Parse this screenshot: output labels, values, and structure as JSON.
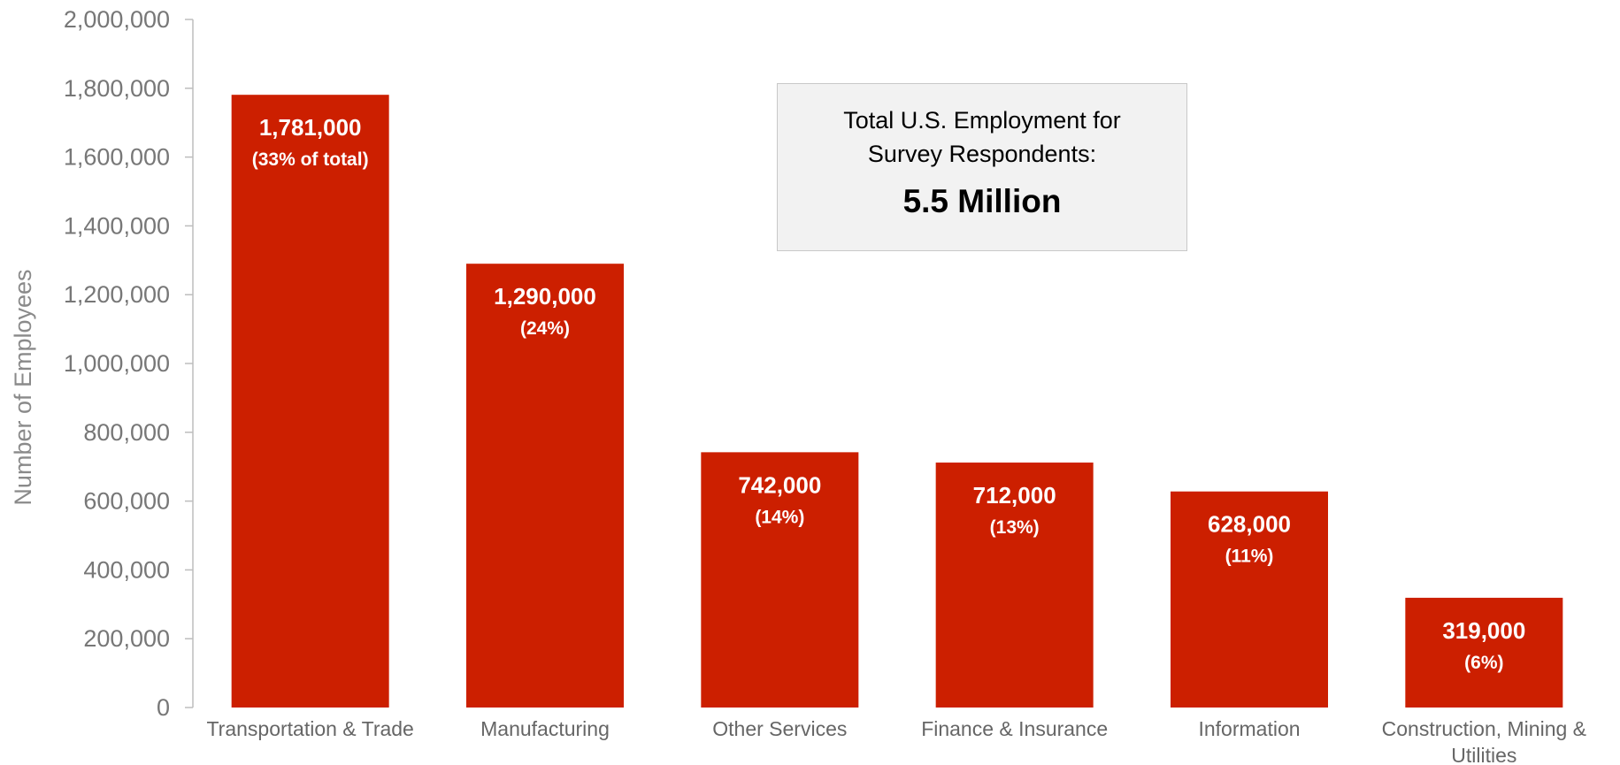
{
  "chart_data": {
    "type": "bar",
    "title": "",
    "xlabel": "",
    "ylabel": "Number of Employees",
    "ylim": [
      0,
      2000000
    ],
    "yticks": [
      "0",
      "200,000",
      "400,000",
      "600,000",
      "800,000",
      "1,000,000",
      "1,200,000",
      "1,400,000",
      "1,600,000",
      "1,800,000",
      "2,000,000"
    ],
    "ytick_values": [
      0,
      200000,
      400000,
      600000,
      800000,
      1000000,
      1200000,
      1400000,
      1600000,
      1800000,
      2000000
    ],
    "grid": false,
    "categories": [
      "Transportation & Trade",
      "Manufacturing",
      "Other Services",
      "Finance & Insurance",
      "Information",
      "Construction, Mining & Utilities"
    ],
    "values": [
      1781000,
      1290000,
      742000,
      712000,
      628000,
      319000
    ],
    "value_labels": [
      "1,781,000",
      "1,290,000",
      "742,000",
      "712,000",
      "628,000",
      "319,000"
    ],
    "percent_labels": [
      "(33% of total)",
      "(24%)",
      "(14%)",
      "(13%)",
      "(11%)",
      "(6%)"
    ],
    "bar_color": "#cc1f00",
    "annotation": {
      "heading": "Total U.S. Employment for Survey Respondents:",
      "value": "5.5 Million"
    }
  }
}
